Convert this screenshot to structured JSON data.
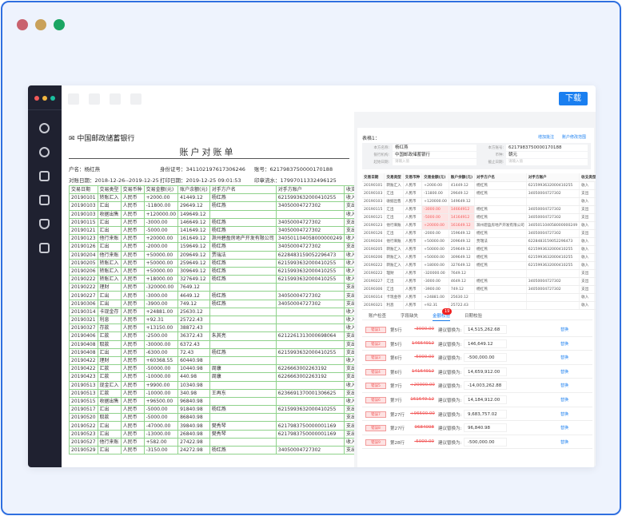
{
  "colors": {
    "accent": "#1a7ff0",
    "error": "#f25a5a",
    "sidebar": "#1f2130",
    "grid": "#8fd28b"
  },
  "toolbar": {
    "download": "下载"
  },
  "sidebar": {
    "icons": [
      "network-icon",
      "settings-icon",
      "home-icon",
      "image-icon",
      "shield-icon",
      "code-icon"
    ]
  },
  "document": {
    "bank_name": "中国邮政储蓄银行",
    "title": "账户对账单",
    "account_name": "户名：杨红燕",
    "id_no": "身份证号：341102197617306246",
    "account_no": "账号：6217983750000170188",
    "period": "对账日期：2018-12-26--2019-12-25",
    "print_date": "打印日期：2019-12-25 09:01:53",
    "serial": "印章流水：1799701133249612​5",
    "headers": [
      "交易日期",
      "交易类型",
      "交易币种",
      "交易金额(元)",
      "账户余额(元)",
      "对手方户名",
      "对手方账户",
      "收支类型"
    ],
    "rows": [
      [
        "20190101",
        "转账汇入",
        "人民币",
        "+2000.00",
        "41449.12",
        "杨红燕",
        "6215993632000410255",
        "收入"
      ],
      [
        "20190103",
        "汇出",
        "人民币",
        "-11800.00",
        "29649.12",
        "杨红燕",
        "34050004727302",
        "支出"
      ],
      [
        "20190103",
        "收据出售",
        "人民币",
        "+120000.00",
        "149649.12",
        "",
        "",
        "收入"
      ],
      [
        "20190115",
        "汇出",
        "人民币",
        "-3000.00",
        "146649.12",
        "杨红燕",
        "34050004727302",
        "支出"
      ],
      [
        "20190121",
        "汇出",
        "人民币",
        "-5000.00",
        "141649.12",
        "杨红燕",
        "34050004727302",
        "支出"
      ],
      [
        "20190123",
        "他行来账",
        "人民币",
        "+20000.00",
        "161649.12",
        "滁州碧盈房地产开发有限公司",
        "340501104058000000249",
        "收入"
      ],
      [
        "20190126",
        "汇出",
        "人民币",
        "-2000.00",
        "159649.12",
        "杨红燕",
        "34050004727302",
        "支出"
      ],
      [
        "20190204",
        "他行来账",
        "人民币",
        "+50000.00",
        "209649.12",
        "贾瑞法",
        "6228483159052296473",
        "收入"
      ],
      [
        "20190205",
        "转账汇入",
        "人民币",
        "+50000.00",
        "259649.12",
        "杨红燕",
        "6215993632000410255",
        "收入"
      ],
      [
        "20190206",
        "转账汇入",
        "人民币",
        "+50000.00",
        "309649.12",
        "杨红燕",
        "6215993632000410255",
        "收入"
      ],
      [
        "20190222",
        "转账汇入",
        "人民币",
        "+18000.00",
        "327649.12",
        "杨红燕",
        "6215993632000410255",
        "收入"
      ],
      [
        "20190222",
        "理财",
        "人民币",
        "-320000.00",
        "7649.12",
        "",
        "",
        "支出"
      ],
      [
        "20190227",
        "汇出",
        "人民币",
        "-3000.00",
        "4649.12",
        "杨红燕",
        "34050004727302",
        "支出"
      ],
      [
        "20190306",
        "汇出",
        "人民币",
        "-3900.00",
        "749.12",
        "杨红燕",
        "34050004727302",
        "支出"
      ],
      [
        "20190314",
        "卡现金存",
        "人民币",
        "+24881.00",
        "25630.12",
        "",
        "",
        "收入"
      ],
      [
        "20190321",
        "利息",
        "人民币",
        "+92.31",
        "25722.43",
        "",
        "",
        "收入"
      ],
      [
        "20190327",
        "存款",
        "人民币",
        "+13150.00",
        "38872.43",
        "",
        "",
        "收入"
      ],
      [
        "20190406",
        "汇款",
        "人民币",
        "-2500.00",
        "36372.43",
        "朱其亮",
        "6212261313000698064",
        "支出"
      ],
      [
        "20190408",
        "取款",
        "人民币",
        "-30000.00",
        "6372.43",
        "",
        "",
        "支出"
      ],
      [
        "20190408",
        "汇出",
        "人民币",
        "-6300.00",
        "72.43",
        "杨红燕",
        "6215993632000410255",
        "支出"
      ],
      [
        "20190422",
        "理财",
        "人民币",
        "+60368.55",
        "60440.98",
        "",
        "",
        "收入"
      ],
      [
        "20190422",
        "汇款",
        "人民币",
        "-50000.00",
        "10440.98",
        "周康",
        "6226663002263192",
        "支出"
      ],
      [
        "20190423",
        "汇款",
        "人民币",
        "-10000.00",
        "440.98",
        "周康",
        "6226663002263192",
        "支出"
      ],
      [
        "20190513",
        "现金汇入",
        "人民币",
        "+9900.00",
        "10340.98",
        "",
        "",
        "收入"
      ],
      [
        "20190513",
        "汇款",
        "人民币",
        "-10000.00",
        "340.98",
        "王再东",
        "6236691370001306625",
        "支出"
      ],
      [
        "20190515",
        "收据出售",
        "人民币",
        "+96500.00",
        "96840.98",
        "",
        "",
        "收入"
      ],
      [
        "20190517",
        "汇出",
        "人民币",
        "-5000.00",
        "91840.98",
        "杨红燕",
        "6215993632000410255",
        "支出"
      ],
      [
        "20190520",
        "取款",
        "人民币",
        "-5000.00",
        "86840.98",
        "",
        "",
        "支出"
      ],
      [
        "20190522",
        "汇出",
        "人民币",
        "-47000.00",
        "39840.98",
        "樊秀琴",
        "6217983750000001169",
        "支出"
      ],
      [
        "20190523",
        "汇出",
        "人民币",
        "-13000.00",
        "26840.98",
        "樊秀琴",
        "6217983750000001169",
        "支出"
      ],
      [
        "20190527",
        "他行来账",
        "人民币",
        "+582.00",
        "27422.98",
        "",
        "",
        "收入"
      ],
      [
        "20190529",
        "汇出",
        "人民币",
        "-3150.00",
        "24272.98",
        "杨红燕",
        "34050004727302",
        "支出"
      ]
    ]
  },
  "panel": {
    "title": "表格1：",
    "add_note": "增加批注",
    "edit_range": "账户修改范围",
    "form": {
      "name_label": "本方名称:",
      "name": "杨红燕",
      "account_label": "本方账号:",
      "account": "6217983750000170188",
      "bank_label": "银行机构:",
      "bank": "中国邮政储蓄银行",
      "currency_label": "币种:",
      "currency": "朝元",
      "start_label": "起始日期:",
      "start_placeholder": "请输入值",
      "end_label": "截止日期:",
      "end_placeholder": "请输入值"
    },
    "headers": [
      "交易日期",
      "交易类型",
      "交易币种",
      "交易金额(元)",
      "账户余额(元)",
      "对手方户名",
      "对手方账户",
      "收支类型"
    ],
    "highlighted_rows": [
      3,
      4,
      5
    ],
    "rows": [
      [
        "20190101",
        "转账汇入",
        "人民币",
        "+2000.00",
        "41449.12",
        "杨红燕",
        "6215993632000410255",
        "收入"
      ],
      [
        "20190103",
        "汇出",
        "人民币",
        "-11800.00",
        "29649.12",
        "杨红燕",
        "34050004727302",
        "支出"
      ],
      [
        "20190103",
        "收据出售",
        "人民币",
        "+120000.00",
        "149649.12",
        "",
        "",
        "收入"
      ],
      [
        "20190115",
        "汇出",
        "人民币",
        "-3000.00",
        "14664912",
        "杨红燕",
        "34050004727302",
        "支出"
      ],
      [
        "20190121",
        "汇出",
        "人民币",
        "-5000.00",
        "14164912",
        "杨红燕",
        "34050004727302",
        "支出"
      ],
      [
        "20190123",
        "他行来账",
        "人民币",
        "+20000.00",
        "161649.12",
        "滁州碧盈房地产开发有限公司",
        "340501104058000000249",
        "收入"
      ],
      [
        "20190126",
        "汇出",
        "人民币",
        "-2000.00",
        "159649.12",
        "杨红燕",
        "34050004727302",
        "支出"
      ],
      [
        "20190204",
        "他行来账",
        "人民币",
        "+50000.00",
        "209649.12",
        "贾瑞法",
        "6228483159052296473",
        "收入"
      ],
      [
        "20190205",
        "转账汇入",
        "人民币",
        "+50000.00",
        "259649.12",
        "杨红燕",
        "6215993632000410255",
        "收入"
      ],
      [
        "20190206",
        "转账汇入",
        "人民币",
        "+50000.00",
        "309649.12",
        "杨红燕",
        "6215993632000410255",
        "收入"
      ],
      [
        "20190222",
        "转账汇入",
        "人民币",
        "+18000.00",
        "327649.12",
        "杨红燕",
        "6215993632000410255",
        "收入"
      ],
      [
        "20190222",
        "理财",
        "人民币",
        "-320000.00",
        "7649.12",
        "",
        "",
        "支出"
      ],
      [
        "20190227",
        "汇出",
        "人民币",
        "-3000.00",
        "4649.12",
        "杨红燕",
        "34050004727302",
        "支出"
      ],
      [
        "20190306",
        "汇出",
        "人民币",
        "-3900.00",
        "749.12",
        "杨红燕",
        "34050004727302",
        "支出"
      ],
      [
        "20190314",
        "卡现金存",
        "人民币",
        "+24881.00",
        "25630.12",
        "",
        "",
        "收入"
      ],
      [
        "20190321",
        "利息",
        "人民币",
        "+92.31",
        "25722.43",
        "",
        "",
        "收入"
      ]
    ],
    "tabs": [
      {
        "label": "账户检查"
      },
      {
        "label": "字段缺失"
      },
      {
        "label": "金额校验",
        "active": true
      },
      {
        "label": "日期校验"
      }
    ],
    "badge": "19",
    "suggest_label": "建议替换为:",
    "replace_label": "替换",
    "errors": [
      {
        "tag": "错误1",
        "row": "第5行",
        "orig": "-3000.00",
        "value": "14,515,262.68"
      },
      {
        "tag": "错误2",
        "row": "第5行",
        "orig": "14664912",
        "value": "146,649.12"
      },
      {
        "tag": "错误3",
        "row": "第6行",
        "orig": "-5000.00",
        "value": "-500,000.00"
      },
      {
        "tag": "错误4",
        "row": "第6行",
        "orig": "14164912",
        "value": "14,659,912.00"
      },
      {
        "tag": "错误5",
        "row": "第7行",
        "orig": "+20000.00",
        "value": "-14,003,262.88"
      },
      {
        "tag": "错误6",
        "row": "第7行",
        "orig": "161649.12",
        "value": "14,184,912.00"
      },
      {
        "tag": "错误7",
        "row": "第27行",
        "orig": "+96500.00",
        "value": "9,683,757.02"
      },
      {
        "tag": "错误8",
        "row": "第27行",
        "orig": "9684098",
        "value": "96,840.98"
      },
      {
        "tag": "错误9",
        "row": "第28行",
        "orig": "-5000.00",
        "value": "-500,000.00"
      }
    ]
  }
}
